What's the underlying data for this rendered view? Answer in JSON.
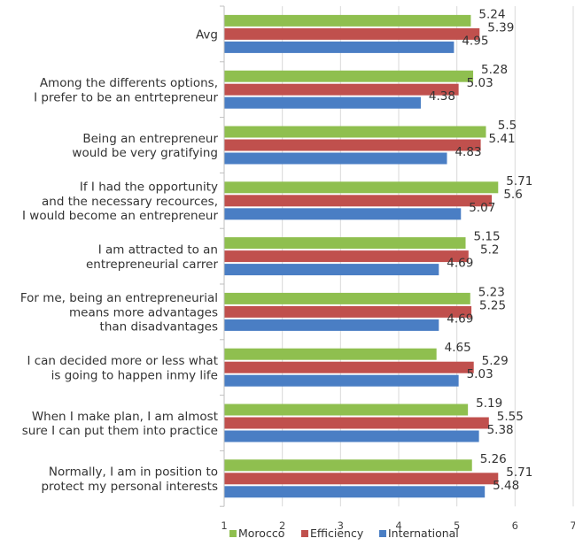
{
  "chart_data": {
    "type": "bar",
    "orientation": "horizontal",
    "categories": [
      [
        "Avg"
      ],
      [
        "Among the differents options,",
        "I prefer to be an entrtepreneur"
      ],
      [
        "Being an entrepreneur",
        "would be very gratifying"
      ],
      [
        "If I had the opportunity",
        "and the necessary recources,",
        "I would become an entrepreneur"
      ],
      [
        "I am attracted to an",
        "entrepreneurial carrer"
      ],
      [
        "For me, being an entrepreneurial",
        "means more advantages",
        "than disadvantages"
      ],
      [
        "I can decided more or less what",
        "is going to happen inmy life"
      ],
      [
        "When I make plan, I am almost",
        "sure I can put them into practice"
      ],
      [
        "Normally, I am in position to",
        "protect my personal interests"
      ]
    ],
    "series": [
      {
        "name": "Morocco",
        "color": "#8fbf4f",
        "values": [
          5.24,
          5.28,
          5.5,
          5.71,
          5.15,
          5.23,
          4.65,
          5.19,
          5.26
        ],
        "labels": [
          "5.24",
          "5.28",
          "5.5",
          "5.71",
          "5.15",
          "5.23",
          "4.65",
          "5.19",
          "5.26"
        ]
      },
      {
        "name": "Efficiency",
        "color": "#c0504d",
        "values": [
          5.39,
          5.03,
          5.41,
          5.6,
          5.2,
          5.25,
          5.29,
          5.55,
          5.71
        ],
        "labels": [
          "5.39",
          "5.03",
          "5.41",
          "5.6",
          "5.2",
          "5.25",
          "5.29",
          "5.55",
          "5.71"
        ]
      },
      {
        "name": "International",
        "color": "#4a7ec4",
        "values": [
          4.95,
          4.38,
          4.83,
          5.07,
          4.69,
          4.69,
          5.03,
          5.38,
          5.48
        ],
        "labels": [
          "4.95",
          "4.38",
          "4.83",
          "5.07",
          "4.69",
          "4.69",
          "5.03",
          "5.38",
          "5.48"
        ]
      }
    ],
    "xlim": [
      1,
      7
    ],
    "xticks": [
      "1",
      "2",
      "3",
      "4",
      "5",
      "6",
      "7"
    ],
    "grid": "vertical",
    "legend_position": "bottom",
    "title": "",
    "xlabel": "",
    "ylabel": ""
  }
}
